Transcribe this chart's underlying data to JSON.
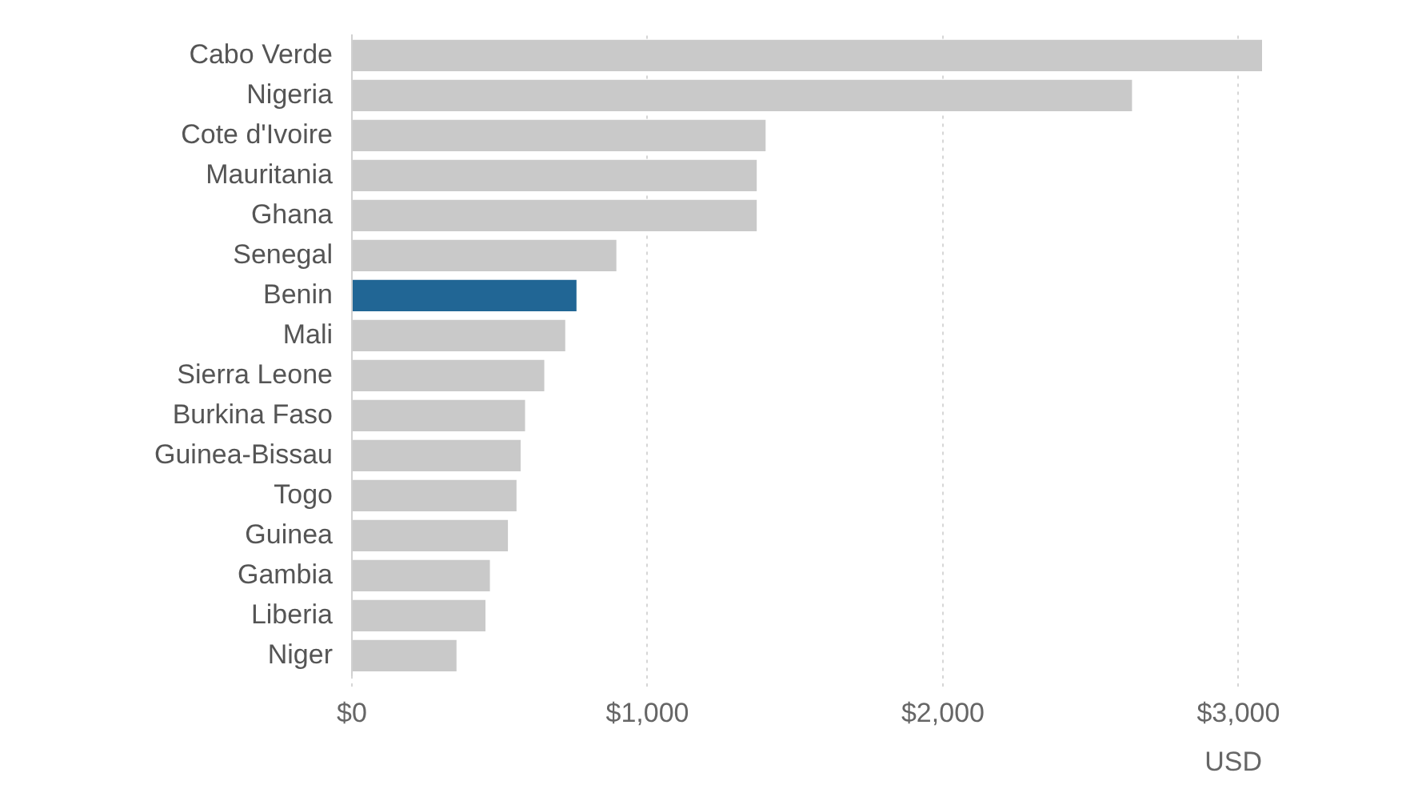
{
  "chart_data": {
    "type": "bar",
    "orientation": "horizontal",
    "xlabel": "USD",
    "categories": [
      "Cabo Verde",
      "Nigeria",
      "Cote d'Ivoire",
      "Mauritania",
      "Ghana",
      "Senegal",
      "Benin",
      "Mali",
      "Sierra Leone",
      "Burkina Faso",
      "Guinea-Bissau",
      "Togo",
      "Guinea",
      "Gambia",
      "Liberia",
      "Niger"
    ],
    "values": [
      3080,
      2640,
      1400,
      1370,
      1370,
      895,
      760,
      722,
      651,
      586,
      571,
      557,
      528,
      467,
      452,
      354
    ],
    "colors": [
      "#c9c9c9",
      "#c9c9c9",
      "#c9c9c9",
      "#c9c9c9",
      "#c9c9c9",
      "#c9c9c9",
      "#216695",
      "#c9c9c9",
      "#c9c9c9",
      "#c9c9c9",
      "#c9c9c9",
      "#c9c9c9",
      "#c9c9c9",
      "#c9c9c9",
      "#c9c9c9",
      "#c9c9c9"
    ],
    "xlim": [
      0,
      3080
    ],
    "xticks": [
      {
        "value": 0,
        "label": "$0"
      },
      {
        "value": 1000,
        "label": "$1,000"
      },
      {
        "value": 2000,
        "label": "$2,000"
      },
      {
        "value": 3000,
        "label": "$3,000"
      }
    ],
    "grid": "x",
    "legend": false
  }
}
